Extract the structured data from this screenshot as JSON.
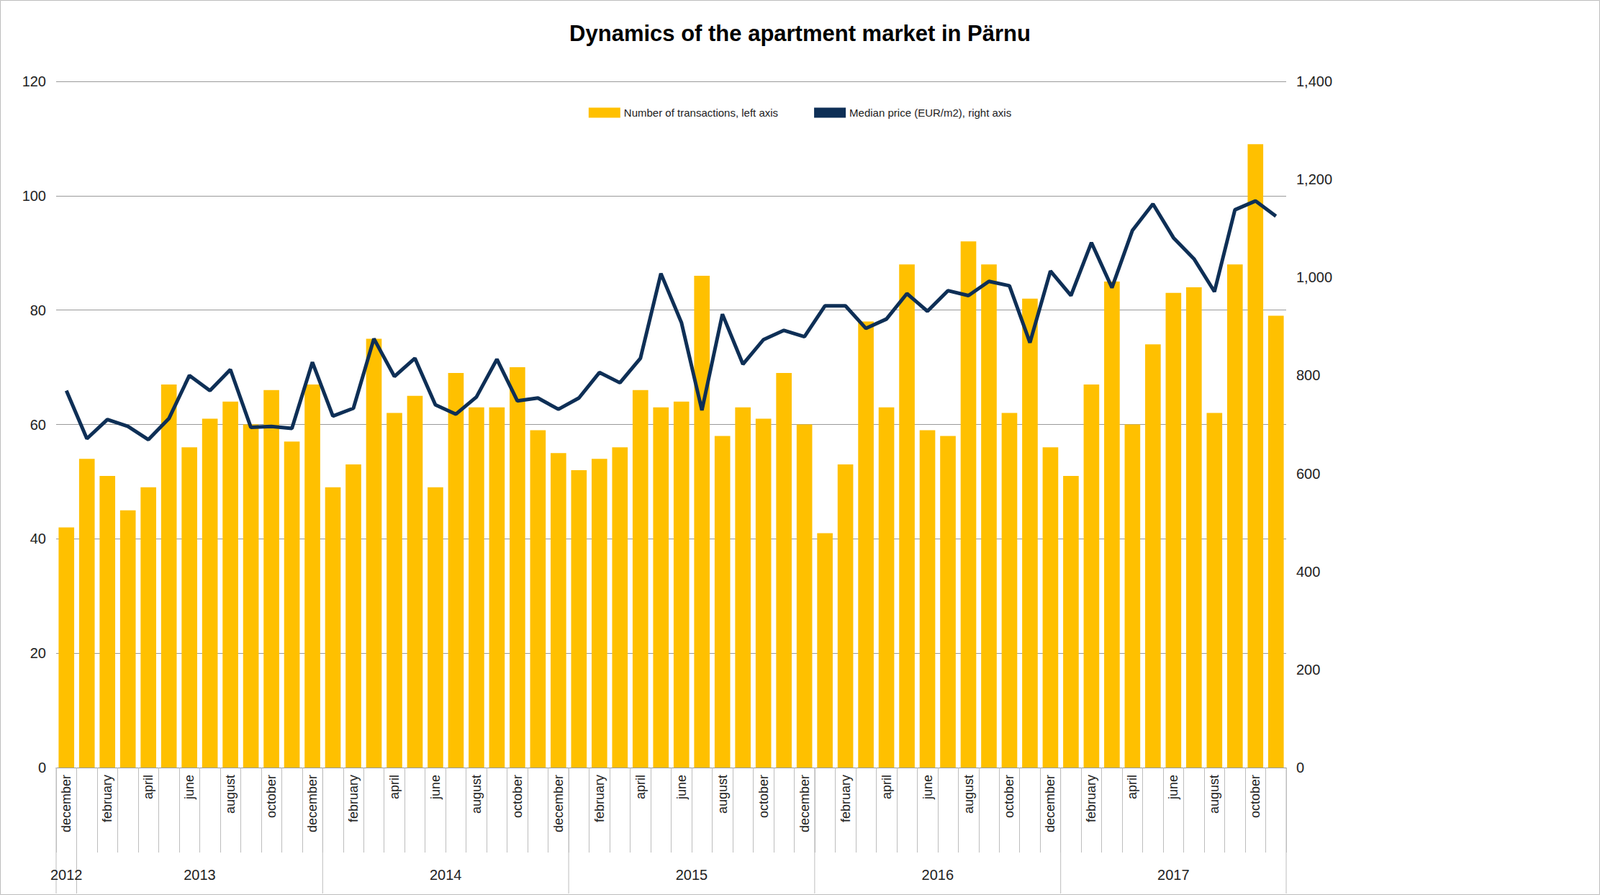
{
  "chart_data": {
    "type": "bar",
    "title": "Dynamics of the apartment market in Pärnu",
    "categories": [
      "december",
      null,
      "february",
      null,
      "april",
      null,
      "june",
      null,
      "august",
      null,
      "october",
      null,
      "december",
      null,
      "february",
      null,
      "april",
      null,
      "june",
      null,
      "august",
      null,
      "october",
      null,
      "december",
      null,
      "february",
      null,
      "april",
      null,
      "june",
      null,
      "august",
      null,
      "october",
      null,
      "december",
      null,
      "february",
      null,
      "april",
      null,
      "june",
      null,
      "august",
      null,
      "october",
      null,
      "december",
      null,
      "february",
      null,
      "april",
      null,
      "june",
      null,
      "august",
      null,
      "october",
      null
    ],
    "category_groups": [
      {
        "label": "2012",
        "span": 1
      },
      {
        "label": "2013",
        "span": 12
      },
      {
        "label": "2014",
        "span": 12
      },
      {
        "label": "2015",
        "span": 12
      },
      {
        "label": "2016",
        "span": 12
      },
      {
        "label": "2017",
        "span": 11
      }
    ],
    "series": [
      {
        "name": "Number of transactions, left axis",
        "type": "bar",
        "color": "#FFC000",
        "values": [
          42,
          54,
          51,
          45,
          49,
          67,
          56,
          61,
          64,
          60,
          66,
          57,
          67,
          49,
          53,
          75,
          62,
          65,
          49,
          69,
          63,
          63,
          70,
          59,
          55,
          52,
          54,
          56,
          66,
          63,
          64,
          86,
          58,
          63,
          61,
          69,
          60,
          41,
          53,
          78,
          63,
          88,
          59,
          58,
          92,
          88,
          62,
          82,
          56,
          51,
          67,
          85,
          60,
          74,
          83,
          84,
          62,
          88,
          109,
          79
        ]
      },
      {
        "name": "Median price (EUR/m2), right axis",
        "type": "line",
        "axis": "y2",
        "color": "#0E2F56",
        "line_style": "solid",
        "marker": "none",
        "values": [
          769,
          671,
          710,
          696,
          669,
          712,
          800,
          769,
          812,
          694,
          696,
          692,
          827,
          717,
          733,
          875,
          798,
          835,
          740,
          721,
          756,
          833,
          748,
          754,
          731,
          754,
          806,
          785,
          835,
          1008,
          908,
          729,
          925,
          823,
          873,
          892,
          879,
          942,
          942,
          896,
          915,
          967,
          931,
          973,
          963,
          992,
          983,
          867,
          1013,
          963,
          1071,
          979,
          1096,
          1150,
          1081,
          1038,
          971,
          1138,
          1156,
          1125
        ]
      }
    ],
    "ylim": [
      0,
      120
    ],
    "yticks": [
      0,
      20,
      40,
      60,
      80,
      100,
      120
    ],
    "y2lim": [
      0,
      1400
    ],
    "y2ticks": [
      0,
      200,
      400,
      600,
      800,
      1000,
      1200,
      1400
    ],
    "grid": true,
    "legend": "top"
  }
}
